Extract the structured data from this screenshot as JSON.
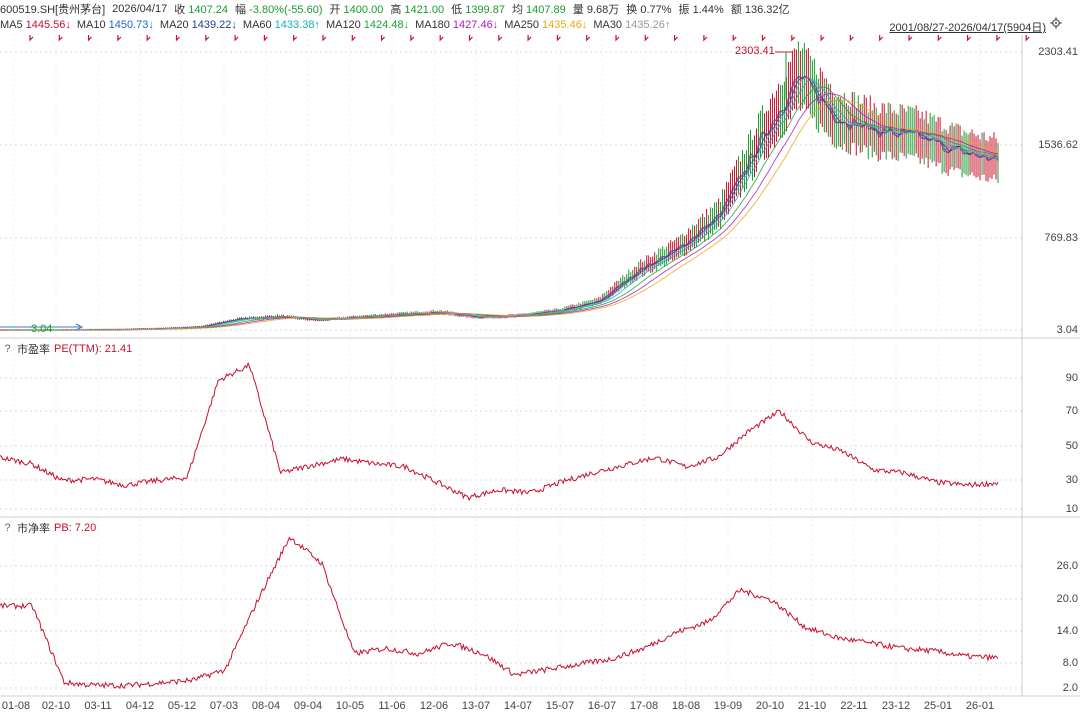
{
  "header": {
    "symbol": "600519.SH[贵州茅台]",
    "date": "2026/04/17",
    "close_label": "收",
    "close": "1407.24",
    "change_label": "幅",
    "change": "-3.80%(-55.60)",
    "open_label": "开",
    "open": "1400.00",
    "high_label": "高",
    "high": "1421.00",
    "low_label": "低",
    "low": "1399.87",
    "avg_label": "均",
    "avg": "1407.89",
    "vol_label": "量",
    "vol": "9.68万",
    "turn_label": "换",
    "turn": "0.77%",
    "amp_label": "振",
    "amp": "1.44%",
    "amt_label": "额",
    "amt": "136.32亿"
  },
  "ma_legend": [
    {
      "label": "MA5",
      "value": "1445.56↓",
      "color": "#c8102e"
    },
    {
      "label": "MA10",
      "value": "1450.73↓",
      "color": "#1e66c9"
    },
    {
      "label": "MA20",
      "value": "1439.22↓",
      "color": "#1e3c9a"
    },
    {
      "label": "MA60",
      "value": "1433.38↑",
      "color": "#14b0b8"
    },
    {
      "label": "MA120",
      "value": "1424.48↓",
      "color": "#17a23a"
    },
    {
      "label": "MA180",
      "value": "1427.46↓",
      "color": "#b519b5"
    },
    {
      "label": "MA250",
      "value": "1435.46↓",
      "color": "#e6a817"
    },
    {
      "label": "MA30",
      "value": "1435.26↑",
      "color": "#9a9a9a"
    }
  ],
  "range_label": "2001/08/27-2026/04/17(5904日)",
  "colors": {
    "pe_line": "#c8102e",
    "pb_line": "#c8102e",
    "grid": "#d8d8d8",
    "axis_text": "#444444"
  },
  "main_panel": {
    "max_label": "2303.41",
    "min_label": "3.04",
    "y_ticks": [
      "2303.41",
      "1536.62",
      "769.83",
      "3.04"
    ]
  },
  "pe_panel": {
    "name": "市盈率",
    "indicator": "PE(TTM): 21.41",
    "y_ticks": [
      "90",
      "70",
      "50",
      "30",
      "10"
    ]
  },
  "pb_panel": {
    "name": "市净率",
    "indicator": "PB: 7.20",
    "y_ticks": [
      "26.0",
      "20.0",
      "14.0",
      "8.0",
      "2.0"
    ]
  },
  "x_ticks": [
    "01-08",
    "02-10",
    "03-11",
    "04-12",
    "05-12",
    "07-03",
    "08-04",
    "09-04",
    "10-05",
    "11-06",
    "12-06",
    "13-07",
    "14-07",
    "15-07",
    "16-07",
    "17-08",
    "18-08",
    "19-09",
    "20-10",
    "21-10",
    "22-11",
    "23-12",
    "25-01",
    "26-01"
  ],
  "chart_data": [
    {
      "type": "line",
      "title": "",
      "ylim": [
        3.04,
        2303.41
      ],
      "x": [
        "2001",
        "2002",
        "2003",
        "2004",
        "2005",
        "2006",
        "2007",
        "2008",
        "2009",
        "2010",
        "2011",
        "2012",
        "2013",
        "2014",
        "2015",
        "2016",
        "2017",
        "2018",
        "2019",
        "2020",
        "2021",
        "2022",
        "2023",
        "2024",
        "2025",
        "2026-04"
      ],
      "series": [
        {
          "name": "",
          "values": [
            3.04,
            3,
            4,
            6,
            14,
            28,
            95,
            115,
            85,
            110,
            130,
            150,
            110,
            120,
            160,
            240,
            500,
            680,
            950,
            1550,
            2100,
            1750,
            1650,
            1600,
            1480,
            1407.24
          ]
        }
      ],
      "markers": [
        {
          "label": "2303.41",
          "x": "2021-02",
          "y": 2303.41
        },
        {
          "label": "3.04",
          "x": "2001-08",
          "y": 3.04
        }
      ]
    },
    {
      "type": "line",
      "ylim": [
        0,
        100
      ],
      "series": [
        {
          "name": "PE(TTM)",
          "values": [
            38,
            34,
            23,
            24,
            20,
            23,
            25,
            88,
            98,
            28,
            33,
            37,
            34,
            32,
            22,
            12,
            17,
            15,
            22,
            28,
            33,
            38,
            32,
            38,
            55,
            68,
            48,
            42,
            30,
            28,
            22,
            20,
            21.41
          ]
        }
      ]
    },
    {
      "type": "line",
      "ylim": [
        0,
        30
      ],
      "series": [
        {
          "name": "PB",
          "values": [
            17,
            17,
            2.5,
            2,
            2,
            2.5,
            3,
            5,
            18,
            30,
            25,
            8,
            9,
            8,
            10,
            8,
            4,
            5,
            6,
            7,
            9,
            12,
            14,
            20,
            18,
            13,
            11,
            10,
            9,
            8.5,
            7.5,
            7.2
          ]
        }
      ]
    }
  ]
}
